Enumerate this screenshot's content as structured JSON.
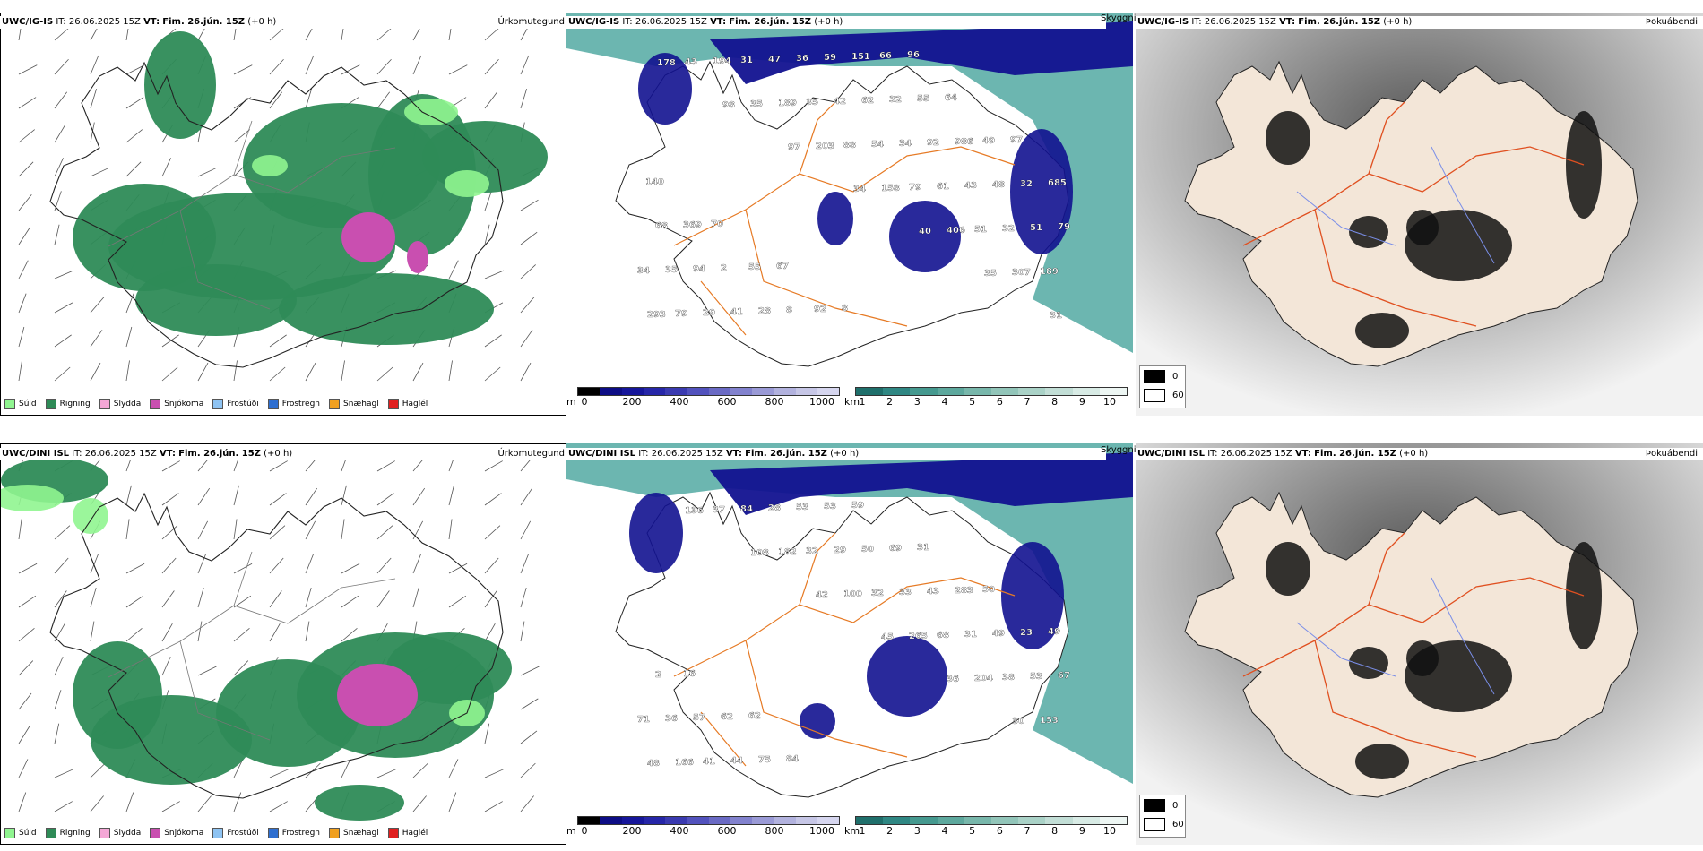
{
  "rows": [
    {
      "precip": {
        "model": "UWC/IG-IS",
        "it_text": "IT: 26.06.2025 15Z",
        "vt_label": "VT:",
        "vt_value": "Fim. 26.jún. 15Z",
        "offset": "(+0 h)",
        "ptype": "Úrkomutegund"
      },
      "ceiling": {
        "model": "UWC/IG-IS",
        "it_text": "IT: 26.06.2025 15Z",
        "vt_label": "VT:",
        "vt_value": "Fim. 26.jún. 15Z",
        "offset": "(+0 h)",
        "ptype": "Skyggni",
        "labels": [
          "178",
          "98",
          "97",
          "34",
          "40",
          "35",
          "31",
          "43",
          "35",
          "203",
          "158",
          "406",
          "307",
          "293",
          "194",
          "189",
          "88",
          "79",
          "51",
          "189",
          "79",
          "31",
          "35",
          "54",
          "61",
          "32",
          "34",
          "29",
          "47",
          "42",
          "34",
          "43",
          "51",
          "35",
          "41",
          "36",
          "62",
          "92",
          "48",
          "79",
          "94",
          "28",
          "59",
          "32",
          "986",
          "32",
          "68",
          "2",
          "8",
          "151",
          "55",
          "49",
          "685",
          "369",
          "55",
          "92",
          "66",
          "64",
          "97",
          "140",
          "70",
          "67",
          "8",
          "96"
        ]
      },
      "cloud": {
        "model": "UWC/IG-IS",
        "it_text": "IT: 26.06.2025 15Z",
        "vt_label": "VT:",
        "vt_value": "Fim. 26.jún. 15Z",
        "offset": "(+0 h)",
        "ptype": "Þokuábendi"
      }
    },
    {
      "precip": {
        "model": "UWC/DINI ISL",
        "it_text": "IT: 26.06.2025 15Z",
        "vt_label": "VT:",
        "vt_value": "Fim. 26.jún. 15Z",
        "offset": "(+0 h)",
        "ptype": "Úrkomutegund"
      },
      "ceiling": {
        "model": "UWC/DINI ISL",
        "it_text": "IT: 26.06.2025 15Z",
        "vt_label": "VT:",
        "vt_value": "Fim. 26.jún. 15Z",
        "offset": "(+0 h)",
        "ptype": "Skyggni",
        "labels": [
          "136",
          "108",
          "42",
          "45",
          "36",
          "30",
          "48",
          "37",
          "182",
          "100",
          "265",
          "204",
          "153",
          "166",
          "84",
          "32",
          "32",
          "68",
          "38",
          "71",
          "41",
          "28",
          "29",
          "33",
          "31",
          "53",
          "36",
          "44",
          "53",
          "50",
          "43",
          "49",
          "67",
          "57",
          "75",
          "53",
          "69",
          "283",
          "23",
          "2",
          "62",
          "84",
          "59",
          "31",
          "50",
          "49",
          "16",
          "62"
        ]
      },
      "cloud": {
        "model": "UWC/DINI ISL",
        "it_text": "IT: 26.06.2025 15Z",
        "vt_label": "VT:",
        "vt_value": "Fim. 26.jún. 15Z",
        "offset": "(+0 h)",
        "ptype": "Þokuábendi"
      }
    }
  ],
  "precip_legend": [
    {
      "label": "Súld",
      "color": "#90f590"
    },
    {
      "label": "Rigning",
      "color": "#2e8b57"
    },
    {
      "label": "Slydda",
      "color": "#f4a7d6"
    },
    {
      "label": "Snjókoma",
      "color": "#c94fb0"
    },
    {
      "label": "Frostúði",
      "color": "#8ec3f2"
    },
    {
      "label": "Frostregn",
      "color": "#2f6fd0"
    },
    {
      "label": "Snæhagl",
      "color": "#f0a020"
    },
    {
      "label": "Haglél",
      "color": "#e02020"
    }
  ],
  "ceiling_scale": {
    "unit": "m",
    "ticks": [
      "0",
      "200",
      "400",
      "600",
      "800",
      "1000"
    ],
    "colors": [
      "#000000",
      "#0d0d85",
      "#16169a",
      "#2626a8",
      "#3a3ab0",
      "#5252bd",
      "#6a6ac4",
      "#8282ce",
      "#9a9ad6",
      "#b2b2de",
      "#c6c6e6",
      "#d6d6ef"
    ]
  },
  "vis_scale": {
    "unit": "km",
    "ticks": [
      "1",
      "2",
      "3",
      "4",
      "5",
      "6",
      "7",
      "8",
      "9",
      "10"
    ],
    "colors": [
      "#1f6f6b",
      "#2f8783",
      "#45998f",
      "#5da89d",
      "#78b7ab",
      "#92c5b9",
      "#aad2c7",
      "#c2ded6",
      "#d8ebe5",
      "#edf6f3"
    ]
  },
  "cloud_legend": [
    {
      "label": "0",
      "color": "#000000"
    },
    {
      "label": "60",
      "color": "#ffffff"
    }
  ],
  "colors": {
    "rain": "#2e8b57",
    "drizzle": "#90f590",
    "snow": "#c94fb0",
    "sleet": "#f4a7d6",
    "sea": "#3b9e95",
    "ceiling_dark": "#121290",
    "land": "#f3e6d8",
    "road": "#e05020"
  }
}
